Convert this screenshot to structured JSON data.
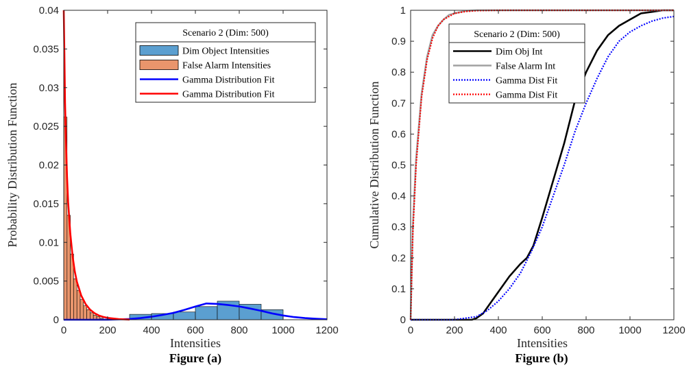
{
  "chart_data": [
    {
      "type": "bar",
      "caption": "Figure (a)",
      "xlabel": "Intensities",
      "ylabel": "Probability Distribution Function",
      "xlim": [
        0,
        1200
      ],
      "ylim": [
        0,
        0.04
      ],
      "xticks": [
        "0",
        "200",
        "400",
        "600",
        "800",
        "1000",
        "1200"
      ],
      "yticks": [
        "0",
        "0.005",
        "0.01",
        "0.015",
        "0.02",
        "0.025",
        "0.03",
        "0.035",
        "0.04"
      ],
      "legend_title": "Scenario 2 (Dim: 500)",
      "legend_position": "top-right",
      "series": [
        {
          "name": "Dim Object Intensities",
          "kind": "histogram",
          "color": "#5B9FD0",
          "bins": [
            {
              "x0": 300,
              "x1": 400,
              "y": 0.0007
            },
            {
              "x0": 400,
              "x1": 500,
              "y": 0.0008
            },
            {
              "x0": 500,
              "x1": 600,
              "y": 0.001
            },
            {
              "x0": 600,
              "x1": 700,
              "y": 0.0017
            },
            {
              "x0": 700,
              "x1": 800,
              "y": 0.0024
            },
            {
              "x0": 800,
              "x1": 900,
              "y": 0.002
            },
            {
              "x0": 900,
              "x1": 1000,
              "y": 0.0013
            }
          ]
        },
        {
          "name": "False Alarm Intensities",
          "kind": "histogram",
          "color": "#E9956C",
          "bins": [
            {
              "x0": 0,
              "x1": 15,
              "y": 0.0262
            },
            {
              "x0": 15,
              "x1": 30,
              "y": 0.0135
            },
            {
              "x0": 30,
              "x1": 45,
              "y": 0.0085
            },
            {
              "x0": 45,
              "x1": 60,
              "y": 0.0053
            },
            {
              "x0": 60,
              "x1": 75,
              "y": 0.0038
            },
            {
              "x0": 75,
              "x1": 90,
              "y": 0.0026
            },
            {
              "x0": 90,
              "x1": 105,
              "y": 0.0018
            },
            {
              "x0": 105,
              "x1": 120,
              "y": 0.0013
            },
            {
              "x0": 120,
              "x1": 135,
              "y": 0.0009
            },
            {
              "x0": 135,
              "x1": 150,
              "y": 0.0006
            },
            {
              "x0": 150,
              "x1": 165,
              "y": 0.0004
            },
            {
              "x0": 165,
              "x1": 180,
              "y": 0.0002
            }
          ]
        },
        {
          "name": "Gamma Distribution Fit",
          "kind": "line",
          "color": "#0000FF",
          "x": [
            0,
            100,
            200,
            250,
            300,
            350,
            400,
            450,
            500,
            550,
            600,
            650,
            700,
            750,
            800,
            850,
            900,
            950,
            1000,
            1050,
            1100,
            1150,
            1200
          ],
          "y": [
            0,
            0,
            1e-05,
            4e-05,
            0.0001,
            0.00021,
            0.00039,
            0.00062,
            0.00089,
            0.00128,
            0.0017,
            0.0021,
            0.00205,
            0.0019,
            0.00172,
            0.00145,
            0.00115,
            0.00082,
            0.00055,
            0.00035,
            0.00021,
            0.00012,
            6e-05
          ]
        },
        {
          "name": "Gamma Distribution Fit",
          "kind": "line",
          "color": "#FF0000",
          "x": [
            0,
            3,
            6,
            10,
            15,
            20,
            30,
            40,
            50,
            60,
            80,
            100,
            120,
            140,
            160,
            180,
            200,
            250,
            300
          ],
          "y": [
            0.04,
            0.034,
            0.028,
            0.0232,
            0.0185,
            0.0152,
            0.0111,
            0.0083,
            0.0063,
            0.0049,
            0.0031,
            0.002,
            0.0013,
            0.00085,
            0.00055,
            0.00036,
            0.00024,
            8e-05,
            2e-05
          ]
        }
      ]
    },
    {
      "type": "line",
      "caption": "Figure (b)",
      "xlabel": "Intensities",
      "ylabel": "Cumulative Distribution Function",
      "xlim": [
        0,
        1200
      ],
      "ylim": [
        0,
        1
      ],
      "xticks": [
        "0",
        "200",
        "400",
        "600",
        "800",
        "1000",
        "1200"
      ],
      "yticks": [
        "0",
        "0.1",
        "0.2",
        "0.3",
        "0.4",
        "0.5",
        "0.6",
        "0.7",
        "0.8",
        "0.9",
        "1"
      ],
      "legend_title": "Scenario 2 (Dim: 500)",
      "legend_position": "top-left",
      "series": [
        {
          "name": "Dim Obj Int",
          "style": "solid",
          "color": "#000000",
          "x": [
            0,
            280,
            300,
            330,
            360,
            400,
            450,
            500,
            530,
            560,
            600,
            650,
            700,
            750,
            800,
            850,
            900,
            950,
            1000,
            1050,
            1100,
            1150,
            1200
          ],
          "y": [
            0,
            0,
            0.005,
            0.02,
            0.05,
            0.09,
            0.14,
            0.18,
            0.2,
            0.24,
            0.33,
            0.45,
            0.57,
            0.71,
            0.8,
            0.87,
            0.92,
            0.95,
            0.97,
            0.99,
            0.995,
            1,
            1
          ]
        },
        {
          "name": "False Alarm Int",
          "style": "solid",
          "color": "#A0A0A0",
          "x": [
            0,
            10,
            25,
            50,
            75,
            100,
            125,
            150,
            175,
            200,
            250,
            300,
            400,
            1200
          ],
          "y": [
            0,
            0.3,
            0.52,
            0.73,
            0.85,
            0.92,
            0.95,
            0.97,
            0.985,
            0.99,
            0.998,
            1,
            1,
            1
          ]
        },
        {
          "name": "Gamma Dist Fit",
          "style": "dotted",
          "color": "#0000FF",
          "x": [
            0,
            200,
            250,
            300,
            350,
            400,
            450,
            500,
            550,
            600,
            650,
            700,
            750,
            800,
            850,
            900,
            950,
            1000,
            1050,
            1100,
            1150,
            1200
          ],
          "y": [
            0,
            0,
            0.005,
            0.01,
            0.03,
            0.06,
            0.1,
            0.15,
            0.22,
            0.3,
            0.4,
            0.5,
            0.61,
            0.7,
            0.78,
            0.85,
            0.9,
            0.93,
            0.95,
            0.965,
            0.975,
            0.98
          ]
        },
        {
          "name": "Gamma Dist Fit",
          "style": "dotted",
          "color": "#FF0000",
          "x": [
            0,
            5,
            10,
            25,
            50,
            75,
            100,
            125,
            150,
            200,
            250,
            300,
            400,
            1200
          ],
          "y": [
            0,
            0.15,
            0.28,
            0.5,
            0.72,
            0.84,
            0.91,
            0.95,
            0.97,
            0.99,
            0.996,
            0.999,
            1,
            1
          ]
        }
      ]
    }
  ]
}
